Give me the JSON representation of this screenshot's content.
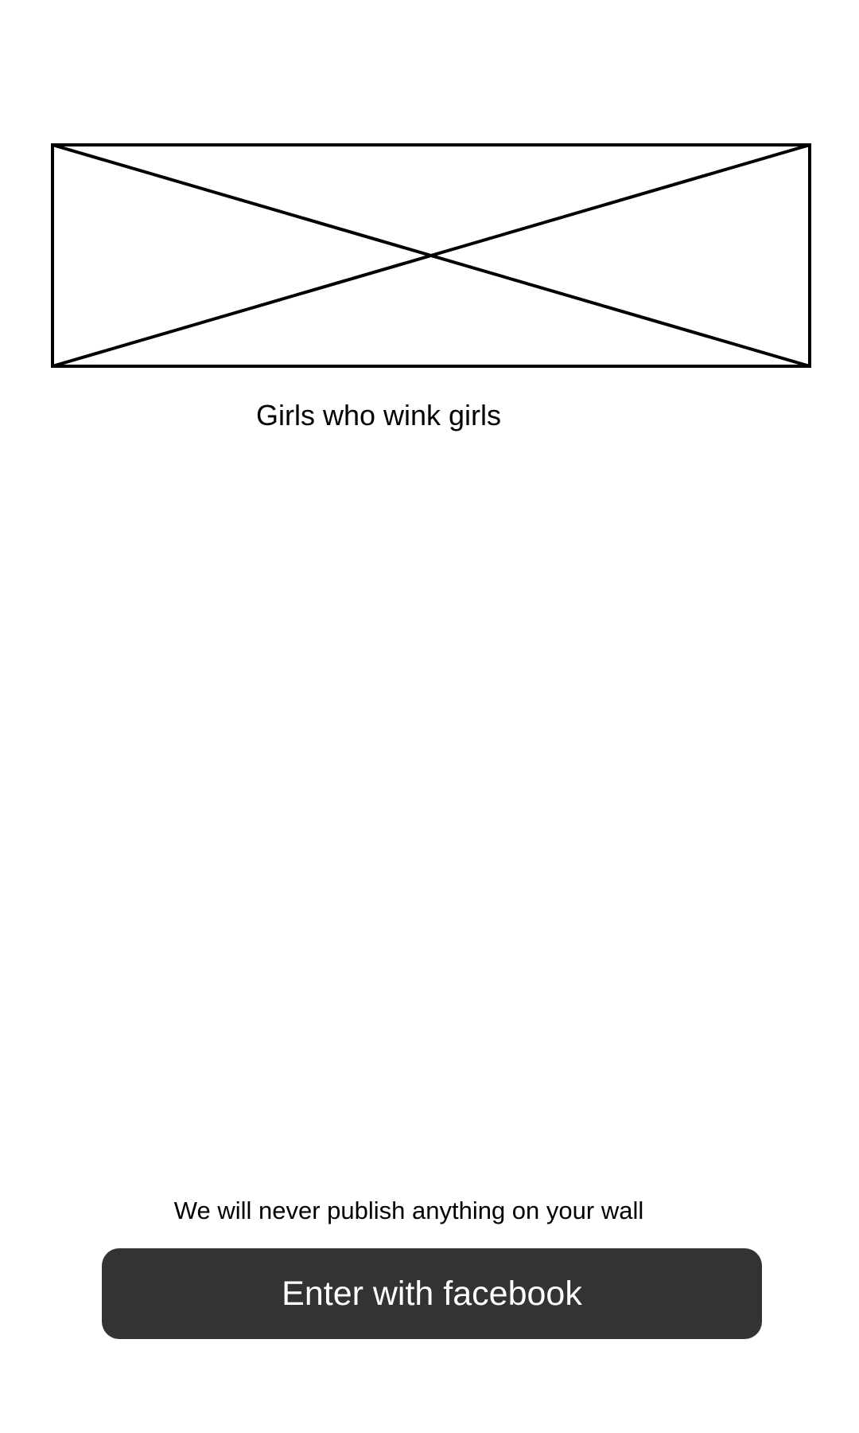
{
  "header_image": {
    "icon": "image-placeholder-icon",
    "stroke_color": "#000000"
  },
  "tagline": "Girls who wink girls",
  "login": {
    "notice": "We will never publish anything on your wall",
    "button_label": "Enter with facebook",
    "button_color": "#333333",
    "button_text_color": "#ffffff"
  }
}
